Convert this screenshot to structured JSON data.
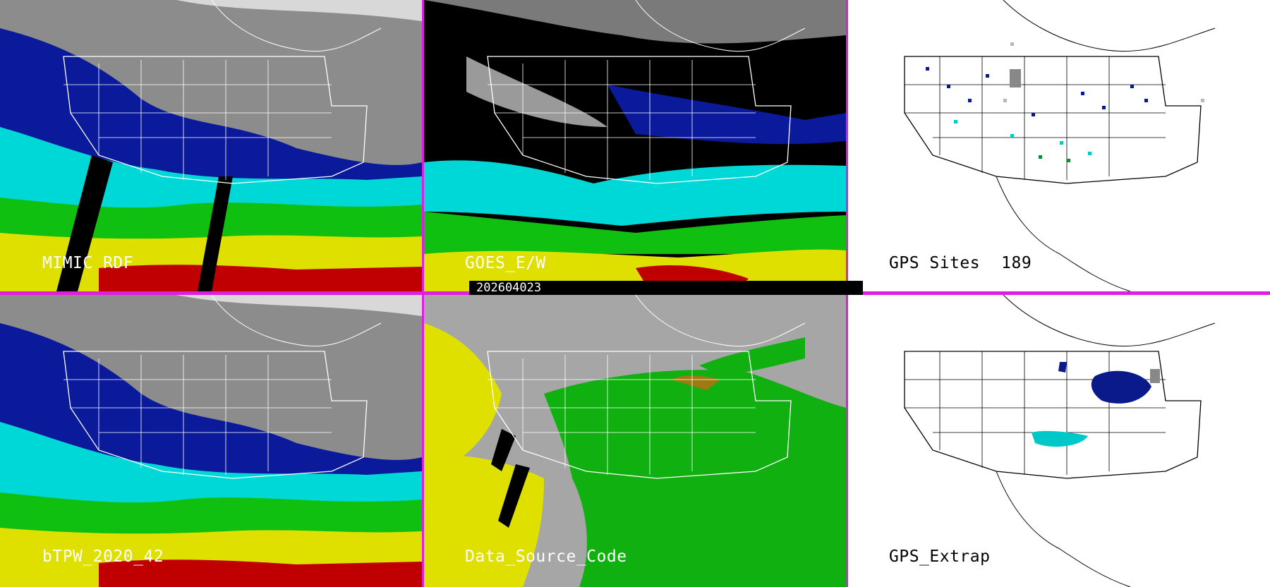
{
  "panels": [
    {
      "id": "mimic",
      "label": "MIMIC RDF",
      "theme": "dark"
    },
    {
      "id": "goes",
      "label": "GOES_E/W",
      "theme": "dark"
    },
    {
      "id": "gps_sites",
      "label": "GPS Sites",
      "count": "189",
      "theme": "light"
    },
    {
      "id": "btpw",
      "label": "bTPW_2020_42",
      "theme": "dark"
    },
    {
      "id": "dsc",
      "label": "Data_Source_Code",
      "theme": "dark"
    },
    {
      "id": "gps_extrap",
      "label": "GPS_Extrap",
      "theme": "light"
    }
  ],
  "timestamp": "202604023",
  "colors": {
    "divider": "#e21de2",
    "tpw_scale": [
      "#ffffff",
      "#8a8a8a",
      "#0000a8",
      "#00e5e5",
      "#00c000",
      "#e5e500",
      "#c00000",
      "#ff00ff"
    ],
    "source_code": {
      "gray": "#a6a6a6",
      "yellow": "#e0e000",
      "green": "#10b010",
      "olive": "#a07a10"
    },
    "gps_sites": {
      "navy": "#0a1a8a",
      "cyan": "#00c8c8",
      "green": "#0a8a3a",
      "lightgray": "#b8b8b8"
    }
  },
  "icons": [
    "map-outline",
    "site-marker"
  ]
}
